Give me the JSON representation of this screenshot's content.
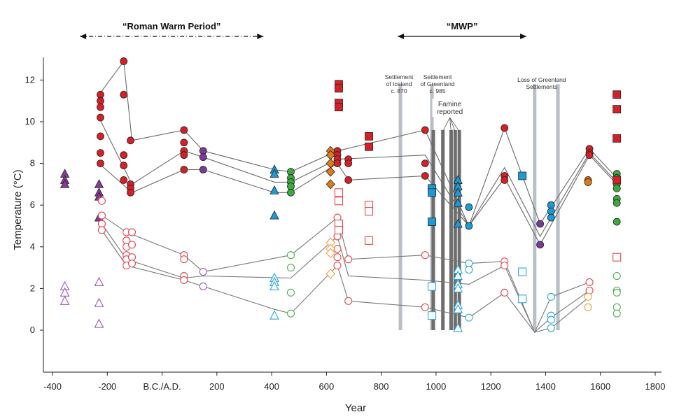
{
  "chart_data": {
    "type": "scatter",
    "title": "",
    "xlabel": "Year",
    "ylabel": "Temperature (°C)",
    "xlim": [
      -430,
      1800
    ],
    "ylim": [
      -2,
      13
    ],
    "x_ticks": [
      {
        "v": -400,
        "label": "-400"
      },
      {
        "v": -200,
        "label": "-200"
      },
      {
        "v": 0,
        "label": "B.C./A.D."
      },
      {
        "v": 200,
        "label": "200"
      },
      {
        "v": 400,
        "label": "400"
      },
      {
        "v": 600,
        "label": "600"
      },
      {
        "v": 800,
        "label": "800"
      },
      {
        "v": 1000,
        "label": "1000"
      },
      {
        "v": 1200,
        "label": "1200"
      },
      {
        "v": 1400,
        "label": "1400"
      },
      {
        "v": 1600,
        "label": "1600"
      },
      {
        "v": 1800,
        "label": "1800"
      }
    ],
    "y_ticks": [
      0,
      2,
      4,
      6,
      8,
      10,
      12
    ],
    "periods": [
      {
        "label": "“Roman Warm Period”",
        "from": -300,
        "to": 370
      },
      {
        "label": "“MWP”",
        "from": 860,
        "to": 1330
      }
    ],
    "events": [
      {
        "label": "Settlement of Iceland c. 870",
        "lines": [
          "Settlement",
          "of Iceland",
          "c. 870"
        ],
        "x": 870
      },
      {
        "label": "Settlement of Greenland c. 985",
        "lines": [
          "Settlement",
          "of Greenland",
          "c. 985"
        ],
        "x": 985
      },
      {
        "label": "Loss of Greenland Settlements",
        "lines": [
          "Loss of Greenland",
          "Settlements"
        ],
        "x": 1360
      },
      {
        "label": "Famine reported",
        "lines": [
          "Famine",
          "reported"
        ],
        "x": 1040
      }
    ],
    "event_bars": [
      {
        "x": 870,
        "shade": "light"
      },
      {
        "x": 985,
        "shade": "light"
      },
      {
        "x": 1360,
        "shade": "light"
      },
      {
        "x": 1445,
        "shade": "light"
      },
      {
        "x": 990,
        "shade": "dark"
      },
      {
        "x": 1025,
        "shade": "dark"
      },
      {
        "x": 1055,
        "shade": "dark"
      },
      {
        "x": 1070,
        "shade": "dark"
      },
      {
        "x": 1085,
        "shade": "dark"
      }
    ],
    "upper_lines": [
      [
        [
          -230,
          11.3
        ],
        [
          -140,
          12.9
        ],
        [
          -110,
          9.1
        ],
        [
          80,
          9.6
        ],
        [
          150,
          8.6
        ],
        [
          410,
          7.7
        ],
        [
          470,
          7.6
        ],
        [
          640,
          8.6
        ],
        [
          960,
          9.6
        ],
        [
          1120,
          5.0
        ],
        [
          1250,
          9.7
        ],
        [
          1380,
          5.1
        ],
        [
          1560,
          8.7
        ],
        [
          1660,
          7.3
        ]
      ],
      [
        [
          -230,
          10.2
        ],
        [
          -110,
          7.0
        ],
        [
          80,
          8.6
        ],
        [
          150,
          8.3
        ],
        [
          410,
          7.1
        ],
        [
          470,
          7.1
        ],
        [
          640,
          8.2
        ],
        [
          960,
          8.4
        ],
        [
          1120,
          5.0
        ],
        [
          1250,
          7.8
        ],
        [
          1380,
          4.5
        ],
        [
          1560,
          8.5
        ],
        [
          1660,
          7.1
        ]
      ],
      [
        [
          -230,
          8.0
        ],
        [
          -110,
          6.6
        ],
        [
          80,
          7.7
        ],
        [
          150,
          7.7
        ],
        [
          410,
          6.6
        ],
        [
          470,
          6.6
        ],
        [
          640,
          8.0
        ],
        [
          680,
          7.2
        ],
        [
          960,
          7.4
        ],
        [
          1120,
          5.0
        ],
        [
          1250,
          7.3
        ],
        [
          1380,
          4.1
        ],
        [
          1560,
          8.4
        ],
        [
          1660,
          7.0
        ]
      ]
    ],
    "lower_lines": [
      [
        [
          -220,
          5.5
        ],
        [
          -130,
          4.7
        ],
        [
          80,
          3.6
        ],
        [
          150,
          2.8
        ],
        [
          470,
          3.6
        ],
        [
          640,
          5.4
        ],
        [
          680,
          3.4
        ],
        [
          960,
          3.6
        ],
        [
          1120,
          3.2
        ],
        [
          1250,
          3.3
        ],
        [
          1360,
          -0.1
        ],
        [
          1420,
          1.6
        ],
        [
          1560,
          2.3
        ]
      ],
      [
        [
          -220,
          5.1
        ],
        [
          -130,
          3.4
        ],
        [
          80,
          2.5
        ],
        [
          150,
          2.6
        ],
        [
          470,
          2.5
        ],
        [
          640,
          4.5
        ],
        [
          680,
          2.6
        ],
        [
          960,
          2.4
        ],
        [
          1120,
          2.2
        ],
        [
          1250,
          3.1
        ],
        [
          1360,
          -0.1
        ],
        [
          1420,
          0.6
        ],
        [
          1560,
          1.9
        ]
      ],
      [
        [
          -220,
          4.8
        ],
        [
          -130,
          3.1
        ],
        [
          80,
          2.4
        ],
        [
          150,
          2.1
        ],
        [
          410,
          1.0
        ],
        [
          470,
          0.8
        ],
        [
          640,
          3.1
        ],
        [
          680,
          1.4
        ],
        [
          960,
          1.1
        ],
        [
          1120,
          0.6
        ],
        [
          1250,
          1.8
        ],
        [
          1360,
          -0.1
        ],
        [
          1420,
          0.1
        ],
        [
          1560,
          1.6
        ]
      ]
    ],
    "series": [
      {
        "group": "filled",
        "shape": "triangle",
        "color": "#8B3A9A",
        "points": [
          [
            -355,
            7.5
          ],
          [
            -355,
            7.2
          ],
          [
            -355,
            7.0
          ],
          [
            -230,
            7.0
          ],
          [
            -230,
            6.6
          ],
          [
            -230,
            6.4
          ],
          [
            -230,
            5.4
          ]
        ]
      },
      {
        "group": "filled",
        "shape": "circle",
        "color": "#D62027",
        "points": [
          [
            -225,
            11.3
          ],
          [
            -225,
            11.0
          ],
          [
            -225,
            10.7
          ],
          [
            -225,
            10.2
          ],
          [
            -225,
            9.3
          ],
          [
            -225,
            8.5
          ],
          [
            -225,
            8.0
          ],
          [
            -140,
            12.9
          ],
          [
            -140,
            11.3
          ],
          [
            -140,
            8.4
          ],
          [
            -140,
            7.9
          ],
          [
            -140,
            7.2
          ],
          [
            -115,
            9.1
          ],
          [
            -115,
            7.0
          ],
          [
            -115,
            6.8
          ],
          [
            -115,
            6.6
          ],
          [
            80,
            9.6
          ],
          [
            80,
            9.0
          ],
          [
            80,
            8.6
          ],
          [
            80,
            8.4
          ],
          [
            80,
            7.7
          ],
          [
            640,
            8.6
          ],
          [
            640,
            8.4
          ],
          [
            640,
            8.2
          ],
          [
            640,
            8.0
          ],
          [
            680,
            8.2
          ],
          [
            680,
            8.0
          ],
          [
            680,
            7.2
          ],
          [
            960,
            9.6
          ],
          [
            960,
            8.0
          ],
          [
            960,
            7.4
          ],
          [
            1250,
            9.7
          ],
          [
            1250,
            7.4
          ],
          [
            1250,
            7.2
          ],
          [
            1560,
            8.7
          ],
          [
            1560,
            8.5
          ],
          [
            1560,
            8.4
          ]
        ]
      },
      {
        "group": "filled",
        "shape": "circle",
        "color": "#7A3A9A",
        "points": [
          [
            150,
            8.6
          ],
          [
            150,
            8.3
          ],
          [
            150,
            7.7
          ],
          [
            1380,
            5.1
          ],
          [
            1380,
            4.1
          ]
        ]
      },
      {
        "group": "filled",
        "shape": "triangle",
        "color": "#1B9AD6",
        "points": [
          [
            410,
            7.7
          ],
          [
            410,
            7.5
          ],
          [
            410,
            6.7
          ],
          [
            410,
            5.5
          ],
          [
            1080,
            7.2
          ],
          [
            1080,
            6.9
          ],
          [
            1080,
            6.6
          ],
          [
            1080,
            6.1
          ],
          [
            1080,
            5.1
          ]
        ]
      },
      {
        "group": "filled",
        "shape": "circle",
        "color": "#3DAA3F",
        "points": [
          [
            470,
            7.6
          ],
          [
            470,
            7.3
          ],
          [
            470,
            7.1
          ],
          [
            470,
            6.9
          ],
          [
            470,
            6.6
          ],
          [
            1660,
            7.5
          ],
          [
            1660,
            7.3
          ],
          [
            1660,
            7.0
          ],
          [
            1660,
            6.8
          ],
          [
            1660,
            6.3
          ],
          [
            1660,
            6.1
          ],
          [
            1660,
            5.2
          ]
        ]
      },
      {
        "group": "filled",
        "shape": "diamond",
        "color": "#E07B1A",
        "points": [
          [
            615,
            8.6
          ],
          [
            615,
            8.4
          ],
          [
            615,
            8.0
          ],
          [
            615,
            7.6
          ],
          [
            615,
            7.0
          ]
        ]
      },
      {
        "group": "filled",
        "shape": "circle",
        "color": "#E07B1A",
        "points": [
          [
            1555,
            7.2
          ],
          [
            1555,
            7.1
          ]
        ]
      },
      {
        "group": "filled",
        "shape": "square",
        "color": "#D62027",
        "points": [
          [
            645,
            11.8
          ],
          [
            645,
            11.6
          ],
          [
            645,
            10.9
          ],
          [
            645,
            10.7
          ],
          [
            755,
            9.3
          ],
          [
            755,
            8.8
          ],
          [
            1660,
            11.3
          ],
          [
            1660,
            10.6
          ],
          [
            1660,
            9.2
          ],
          [
            1660,
            7.2
          ]
        ]
      },
      {
        "group": "filled",
        "shape": "square",
        "color": "#1B9AD6",
        "points": [
          [
            985,
            6.8
          ],
          [
            985,
            6.6
          ],
          [
            985,
            5.2
          ],
          [
            1315,
            7.4
          ]
        ]
      },
      {
        "group": "filled",
        "shape": "circle",
        "color": "#1B9AD6",
        "points": [
          [
            1120,
            5.9
          ],
          [
            1120,
            5.0
          ],
          [
            1420,
            6.0
          ],
          [
            1420,
            5.7
          ],
          [
            1420,
            5.4
          ]
        ]
      },
      {
        "group": "open",
        "shape": "triangle",
        "color": "#9B59B6",
        "points": [
          [
            -355,
            2.1
          ],
          [
            -355,
            1.8
          ],
          [
            -355,
            1.4
          ],
          [
            -230,
            2.3
          ],
          [
            -230,
            1.3
          ],
          [
            -230,
            0.3
          ]
        ]
      },
      {
        "group": "open",
        "shape": "circle",
        "color": "#E8474F",
        "points": [
          [
            -220,
            6.2
          ],
          [
            -220,
            5.5
          ],
          [
            -220,
            5.1
          ],
          [
            -220,
            4.8
          ],
          [
            -130,
            4.7
          ],
          [
            -130,
            4.3
          ],
          [
            -130,
            4.0
          ],
          [
            -130,
            3.6
          ],
          [
            -130,
            3.4
          ],
          [
            -130,
            3.1
          ],
          [
            -110,
            4.7
          ],
          [
            -110,
            4.1
          ],
          [
            -110,
            3.5
          ],
          [
            -110,
            3.2
          ],
          [
            80,
            3.6
          ],
          [
            80,
            3.4
          ],
          [
            80,
            2.6
          ],
          [
            80,
            2.4
          ],
          [
            640,
            5.4
          ],
          [
            640,
            4.5
          ],
          [
            640,
            3.9
          ],
          [
            640,
            3.5
          ],
          [
            640,
            3.1
          ],
          [
            680,
            3.4
          ],
          [
            680,
            1.4
          ],
          [
            960,
            3.6
          ],
          [
            960,
            1.1
          ],
          [
            1250,
            3.3
          ],
          [
            1250,
            3.1
          ],
          [
            1250,
            1.8
          ],
          [
            1560,
            2.3
          ],
          [
            1560,
            1.9
          ]
        ]
      },
      {
        "group": "open",
        "shape": "circle",
        "color": "#9B59B6",
        "points": [
          [
            150,
            2.8
          ],
          [
            150,
            2.1
          ]
        ]
      },
      {
        "group": "open",
        "shape": "triangle",
        "color": "#27A7E0",
        "points": [
          [
            410,
            2.5
          ],
          [
            410,
            2.3
          ],
          [
            410,
            2.1
          ],
          [
            410,
            0.7
          ],
          [
            1080,
            2.9
          ],
          [
            1080,
            2.6
          ],
          [
            1080,
            2.2
          ],
          [
            1080,
            2.0
          ],
          [
            1080,
            1.2
          ],
          [
            1080,
            1.0
          ],
          [
            1080,
            0.1
          ]
        ]
      },
      {
        "group": "open",
        "shape": "circle",
        "color": "#4CB050",
        "points": [
          [
            470,
            3.6
          ],
          [
            470,
            3.0
          ],
          [
            470,
            1.8
          ],
          [
            470,
            0.8
          ],
          [
            1660,
            2.6
          ],
          [
            1660,
            1.9
          ],
          [
            1660,
            1.8
          ],
          [
            1660,
            1.1
          ],
          [
            1660,
            0.8
          ]
        ]
      },
      {
        "group": "open",
        "shape": "diamond",
        "color": "#F0A040",
        "points": [
          [
            615,
            4.2
          ],
          [
            615,
            3.9
          ],
          [
            615,
            3.7
          ],
          [
            615,
            2.7
          ]
        ]
      },
      {
        "group": "open",
        "shape": "circle",
        "color": "#F0A040",
        "points": [
          [
            1555,
            1.6
          ],
          [
            1555,
            1.1
          ]
        ]
      },
      {
        "group": "open",
        "shape": "square",
        "color": "#E8474F",
        "points": [
          [
            645,
            6.6
          ],
          [
            645,
            6.2
          ],
          [
            645,
            5.1
          ],
          [
            645,
            4.8
          ],
          [
            755,
            6.0
          ],
          [
            755,
            5.7
          ],
          [
            755,
            4.3
          ],
          [
            1660,
            3.5
          ]
        ]
      },
      {
        "group": "open",
        "shape": "square",
        "color": "#27A7E0",
        "points": [
          [
            985,
            2.1
          ],
          [
            985,
            0.7
          ],
          [
            1315,
            2.8
          ],
          [
            1315,
            1.5
          ]
        ]
      },
      {
        "group": "open",
        "shape": "circle",
        "color": "#27A7E0",
        "points": [
          [
            1120,
            3.2
          ],
          [
            1120,
            2.9
          ],
          [
            1120,
            0.6
          ],
          [
            1420,
            1.6
          ],
          [
            1420,
            0.7
          ],
          [
            1420,
            0.5
          ],
          [
            1420,
            0.1
          ]
        ]
      }
    ]
  }
}
